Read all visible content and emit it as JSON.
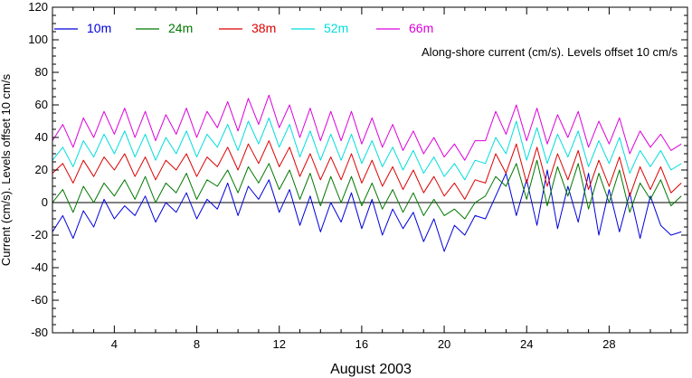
{
  "chart_data": {
    "type": "line",
    "title": "",
    "xlabel": "August 2003",
    "ylabel": "Current (cm/s). Levels offset 10 cm/s",
    "annotation": "Along-shore current (cm/s). Levels offset 10 cm/s",
    "xlim": [
      1,
      31.8
    ],
    "ylim": [
      -80,
      120
    ],
    "xticks": [
      4,
      8,
      12,
      16,
      20,
      24,
      28
    ],
    "xtick_labels": [
      "4",
      "8",
      "12",
      "16",
      "20",
      "24",
      "28"
    ],
    "yticks": [
      -80,
      -60,
      -40,
      -20,
      0,
      20,
      40,
      60,
      80,
      100,
      120
    ],
    "ytick_labels": [
      "-80",
      "-60",
      "-40",
      "-20",
      "0",
      "20",
      "40",
      "60",
      "80",
      "100",
      "120"
    ],
    "zero_line": 0,
    "legend_position": "top-left",
    "grid": false,
    "x": [
      1.0,
      1.5,
      2.0,
      2.5,
      3.0,
      3.5,
      4.0,
      4.5,
      5.0,
      5.5,
      6.0,
      6.5,
      7.0,
      7.5,
      8.0,
      8.5,
      9.0,
      9.5,
      10.0,
      10.5,
      11.0,
      11.5,
      12.0,
      12.5,
      13.0,
      13.5,
      14.0,
      14.5,
      15.0,
      15.5,
      16.0,
      16.5,
      17.0,
      17.5,
      18.0,
      18.5,
      19.0,
      19.5,
      20.0,
      20.5,
      21.0,
      21.5,
      22.0,
      22.5,
      23.0,
      23.5,
      24.0,
      24.5,
      25.0,
      25.5,
      26.0,
      26.5,
      27.0,
      27.5,
      28.0,
      28.5,
      29.0,
      29.5,
      30.0,
      30.5,
      31.0,
      31.5
    ],
    "series": [
      {
        "name": "10m",
        "color": "#0000dd",
        "values": [
          -18,
          -8,
          -22,
          -5,
          -15,
          2,
          -10,
          -2,
          -8,
          4,
          -12,
          0,
          -6,
          6,
          -10,
          2,
          -4,
          12,
          -8,
          10,
          2,
          14,
          -6,
          8,
          -14,
          4,
          -18,
          0,
          -12,
          6,
          -16,
          2,
          -20,
          -4,
          -16,
          -6,
          -24,
          -10,
          -30,
          -14,
          -20,
          -8,
          -10,
          4,
          18,
          -8,
          14,
          -14,
          20,
          -16,
          10,
          -12,
          18,
          -20,
          8,
          -18,
          6,
          -22,
          4,
          -14,
          -20,
          -18
        ]
      },
      {
        "name": "24m",
        "color": "#007700",
        "values": [
          0,
          8,
          -6,
          10,
          0,
          12,
          4,
          14,
          2,
          16,
          0,
          12,
          6,
          18,
          2,
          14,
          10,
          20,
          6,
          22,
          12,
          24,
          8,
          20,
          2,
          18,
          -2,
          16,
          0,
          16,
          -2,
          12,
          -4,
          8,
          -6,
          6,
          -8,
          2,
          -8,
          -4,
          -10,
          0,
          4,
          16,
          10,
          24,
          2,
          26,
          -2,
          22,
          4,
          24,
          -4,
          18,
          0,
          20,
          -6,
          12,
          2,
          14,
          -2,
          4
        ]
      },
      {
        "name": "38m",
        "color": "#dd0000",
        "values": [
          18,
          24,
          12,
          26,
          16,
          28,
          20,
          30,
          16,
          28,
          14,
          26,
          20,
          30,
          16,
          28,
          22,
          34,
          20,
          36,
          24,
          38,
          22,
          34,
          16,
          30,
          14,
          28,
          14,
          30,
          12,
          26,
          10,
          22,
          8,
          20,
          6,
          16,
          4,
          12,
          2,
          14,
          12,
          30,
          18,
          36,
          12,
          34,
          10,
          30,
          14,
          32,
          8,
          26,
          10,
          28,
          4,
          22,
          8,
          22,
          6,
          12
        ]
      },
      {
        "name": "52m",
        "color": "#00dddd",
        "values": [
          26,
          34,
          22,
          38,
          28,
          42,
          30,
          44,
          28,
          42,
          26,
          40,
          30,
          44,
          28,
          42,
          34,
          48,
          32,
          50,
          36,
          52,
          34,
          48,
          28,
          44,
          26,
          42,
          26,
          42,
          24,
          38,
          22,
          34,
          20,
          32,
          18,
          28,
          16,
          24,
          14,
          26,
          24,
          40,
          30,
          50,
          26,
          46,
          24,
          42,
          28,
          44,
          22,
          38,
          24,
          40,
          18,
          32,
          22,
          32,
          20,
          24
        ]
      },
      {
        "name": "66m",
        "color": "#dd00dd",
        "values": [
          38,
          48,
          34,
          52,
          40,
          56,
          42,
          58,
          40,
          56,
          38,
          54,
          42,
          58,
          40,
          56,
          46,
          62,
          44,
          64,
          48,
          66,
          46,
          60,
          40,
          58,
          38,
          56,
          38,
          56,
          36,
          52,
          34,
          48,
          32,
          44,
          30,
          40,
          28,
          36,
          26,
          38,
          38,
          56,
          42,
          60,
          38,
          58,
          36,
          54,
          40,
          56,
          34,
          50,
          36,
          52,
          30,
          44,
          34,
          42,
          32,
          36
        ]
      }
    ]
  }
}
